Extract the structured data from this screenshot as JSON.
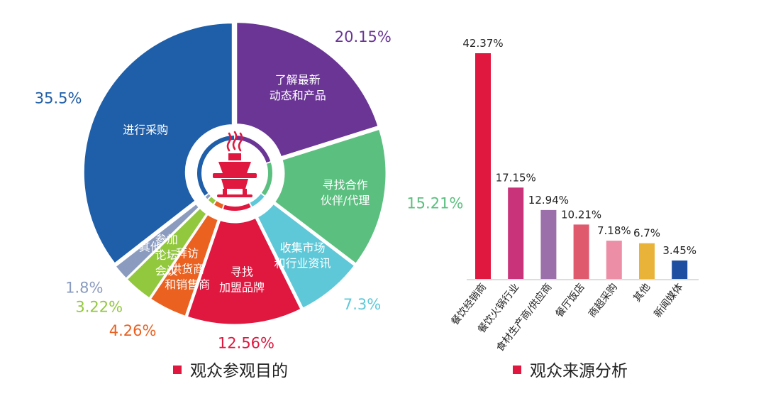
{
  "chart_data": [
    {
      "type": "pie",
      "title": "观众参观目的",
      "title_marker_color": "#e0173f",
      "center_icon": "hotpot-icon",
      "slices": [
        {
          "label": "了解最新\n动态和产品",
          "value": 20.15,
          "display": "20.15%",
          "color": "#6b3596",
          "pct_color": "#6b3596"
        },
        {
          "label": "寻找合作\n伙伴/代理",
          "value": 15.21,
          "display": "15.21%",
          "color": "#5bbf7f",
          "pct_color": "#5bbf7f"
        },
        {
          "label": "收集市场\n和行业资讯",
          "value": 7.3,
          "display": "7.3%",
          "color": "#5ec8d8",
          "pct_color": "#5ec8d8"
        },
        {
          "label": "寻找\n加盟品牌",
          "value": 12.56,
          "display": "12.56%",
          "color": "#e0173f",
          "pct_color": "#e0173f"
        },
        {
          "label": "拜访\n供货商\n和销售商",
          "value": 4.26,
          "display": "4.26%",
          "color": "#ea6120",
          "pct_color": "#ea6120"
        },
        {
          "label": "参加\n论坛\n会议",
          "value": 3.22,
          "display": "3.22%",
          "color": "#92c83e",
          "pct_color": "#92c83e"
        },
        {
          "label": "其他",
          "value": 1.8,
          "display": "1.8%",
          "color": "#8a9bbf",
          "pct_color": "#8a9bbf"
        },
        {
          "label": "进行采购",
          "value": 35.5,
          "display": "35.5%",
          "color": "#1f5ea8",
          "pct_color": "#1f5ea8"
        }
      ]
    },
    {
      "type": "bar",
      "title": "观众来源分析",
      "title_marker_color": "#e0173f",
      "categories": [
        "餐饮经销商",
        "餐饮火锅行业",
        "食材生产商/供应商",
        "餐厅饭店",
        "商超采购",
        "其他",
        "新闻媒体"
      ],
      "values": [
        42.37,
        17.15,
        12.94,
        10.21,
        7.18,
        6.7,
        3.45
      ],
      "value_labels": [
        "42.37%",
        "17.15%",
        "12.94%",
        "10.21%",
        "7.18%",
        "6.7%",
        "3.45%"
      ],
      "colors": [
        "#e0173f",
        "#c9337a",
        "#9a6faa",
        "#e05a6e",
        "#ec8fa6",
        "#e9b33a",
        "#1e4fa0"
      ],
      "ylim": [
        0,
        42.37
      ],
      "xlabel": "",
      "ylabel": ""
    }
  ]
}
